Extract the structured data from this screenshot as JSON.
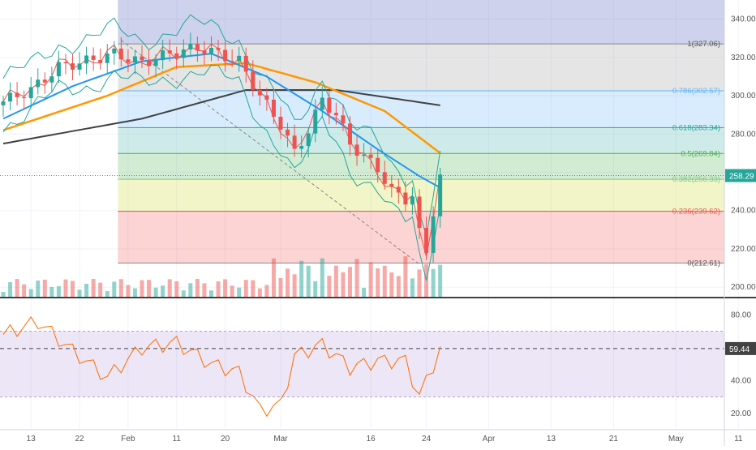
{
  "chart_data": {
    "type": "candlestick",
    "price_axis": {
      "ticks": [
        340,
        320,
        300,
        280,
        260,
        240,
        220,
        200
      ],
      "range": [
        195,
        350
      ]
    },
    "current_price": {
      "label": "258.29",
      "value": 258.29,
      "color": "#26a69a"
    },
    "time_axis": {
      "labels": [
        "13",
        "22",
        "Feb",
        "11",
        "20",
        "Mar",
        "16",
        "24",
        "Apr",
        "13",
        "21",
        "May",
        "11"
      ],
      "index": [
        4,
        11,
        18,
        25,
        32,
        40,
        53,
        61,
        70,
        79,
        88,
        97,
        106
      ]
    },
    "fib_levels": [
      {
        "label": "1(327.06)",
        "price": 327.06,
        "line": "#888888",
        "fill": "rgba(150,150,150,0.25)"
      },
      {
        "label": "0.786(302.57)",
        "price": 302.57,
        "line": "#64b5f6",
        "fill": "rgba(100,181,246,0.25)"
      },
      {
        "label": "0.618(283.34)",
        "price": 283.34,
        "line": "#26a69a",
        "fill": "rgba(38,166,154,0.22)"
      },
      {
        "label": "0.5(269.84)",
        "price": 269.84,
        "line": "#4caf50",
        "fill": "rgba(76,175,80,0.25)"
      },
      {
        "label": "0.382(256.33)",
        "price": 256.33,
        "line": "#81c784",
        "fill": "rgba(205,220,57,0.28)"
      },
      {
        "label": "0.236(239.62)",
        "price": 239.62,
        "line": "#ef5350",
        "fill": "rgba(239,83,80,0.25)"
      },
      {
        "label": "0(212.61)",
        "price": 212.61,
        "line": "#888888",
        "fill": ""
      }
    ],
    "fib_top_zone": {
      "from": 327.06,
      "to": 350,
      "fill": "rgba(92,107,192,0.30)"
    },
    "fib_start_index": 17,
    "rsi": {
      "axis_ticks": [
        80.0,
        60.0,
        40.0,
        20.0
      ],
      "axis_labels": [
        "80.00",
        "60.00",
        "40.00",
        "20.00"
      ],
      "range": [
        10,
        90
      ],
      "upper_band": 70,
      "lower_band": 30,
      "midline": 59.44,
      "current": {
        "label": "59.44",
        "color": "#424242"
      },
      "series_color": "#ff6d00",
      "band_fill": "rgba(149,117,205,0.18)"
    },
    "colors": {
      "up": "#26a69a",
      "down": "#ef5350",
      "ma_long": "#424242",
      "ma_mid": "#ff9800",
      "ma_short": "#2196f3",
      "bb_basis": "#ef5350",
      "bb_band": "#26a69a"
    }
  }
}
